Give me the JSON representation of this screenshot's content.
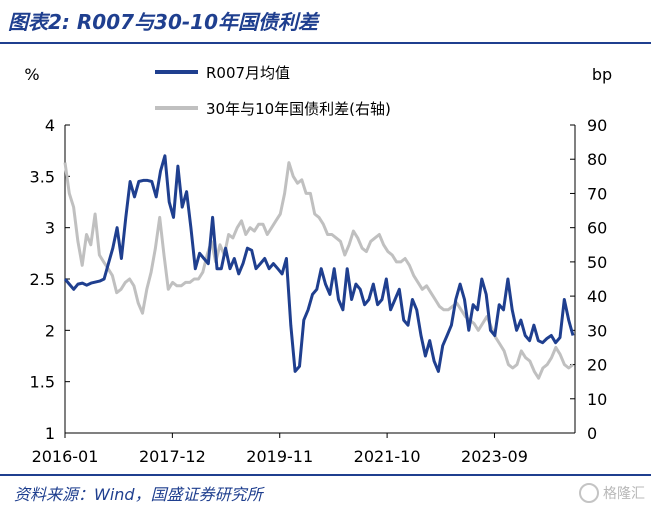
{
  "title": "图表2:  R007与30-10年国债利差",
  "source": "资料来源：Wind，国盛证券研究所",
  "watermark": "格隆汇",
  "chart_data": {
    "type": "line",
    "left_unit": "%",
    "right_unit": "bp",
    "ylim_left": [
      1,
      4
    ],
    "ylim_right": [
      0,
      90
    ],
    "yticks_left": [
      "1",
      "1.5",
      "2",
      "2.5",
      "3",
      "3.5",
      "4"
    ],
    "yticks_right": [
      "0",
      "10",
      "20",
      "30",
      "40",
      "50",
      "60",
      "70",
      "80",
      "90"
    ],
    "xticks": [
      "2016-01",
      "2017-12",
      "2019-11",
      "2021-10",
      "2023-09"
    ],
    "legend_position": "top",
    "series": [
      {
        "name": "R007月均值",
        "axis": "left",
        "color": "#1f3f8f",
        "values": [
          2.5,
          2.45,
          2.4,
          2.45,
          2.46,
          2.44,
          2.46,
          2.47,
          2.48,
          2.5,
          2.65,
          2.8,
          3.0,
          2.7,
          3.1,
          3.45,
          3.3,
          3.45,
          3.46,
          3.46,
          3.45,
          3.3,
          3.55,
          3.7,
          3.25,
          3.1,
          3.6,
          3.2,
          3.35,
          3.0,
          2.6,
          2.75,
          2.7,
          2.65,
          3.1,
          2.6,
          2.6,
          2.8,
          2.6,
          2.7,
          2.55,
          2.65,
          2.8,
          2.78,
          2.6,
          2.65,
          2.7,
          2.6,
          2.65,
          2.6,
          2.55,
          2.7,
          2.05,
          1.6,
          1.65,
          2.1,
          2.2,
          2.35,
          2.4,
          2.6,
          2.45,
          2.35,
          2.6,
          2.3,
          2.2,
          2.6,
          2.3,
          2.45,
          2.4,
          2.25,
          2.3,
          2.45,
          2.25,
          2.3,
          2.5,
          2.2,
          2.3,
          2.4,
          2.1,
          2.05,
          2.3,
          2.2,
          1.95,
          1.75,
          1.9,
          1.7,
          1.6,
          1.85,
          1.95,
          2.05,
          2.3,
          2.45,
          2.3,
          2.0,
          2.25,
          2.2,
          2.5,
          2.35,
          2.0,
          1.95,
          2.25,
          2.2,
          2.5,
          2.2,
          2.0,
          2.1,
          1.95,
          1.9,
          2.05,
          1.9,
          1.88,
          1.92,
          1.95,
          1.88,
          1.93,
          2.3,
          2.1,
          1.95
        ]
      },
      {
        "name": "30年与10年国债利差(右轴)",
        "axis": "right",
        "color": "#c0c0c0",
        "values": [
          79,
          70,
          66,
          56,
          49,
          58,
          55,
          64,
          52,
          50,
          48,
          46,
          41,
          42,
          44,
          45,
          43,
          38,
          35,
          42,
          47,
          54,
          63,
          52,
          42,
          44,
          43,
          43,
          44,
          44,
          45,
          45,
          47,
          52,
          56,
          50,
          55,
          52,
          58,
          57,
          60,
          62,
          58,
          60,
          59,
          61,
          61,
          58,
          60,
          62,
          64,
          70,
          79,
          75,
          73,
          74,
          70,
          70,
          64,
          63,
          61,
          58,
          58,
          57,
          56,
          52,
          55,
          59,
          57,
          54,
          53,
          56,
          57,
          58,
          55,
          53,
          52,
          50,
          50,
          51,
          49,
          46,
          44,
          42,
          43,
          41,
          39,
          37,
          36,
          36,
          37,
          38,
          36,
          34,
          33,
          32,
          30,
          32,
          34,
          31,
          28,
          26,
          24,
          20,
          19,
          20,
          24,
          22,
          21,
          18,
          16,
          19,
          20,
          22,
          25,
          23,
          20,
          19,
          20
        ]
      }
    ]
  }
}
